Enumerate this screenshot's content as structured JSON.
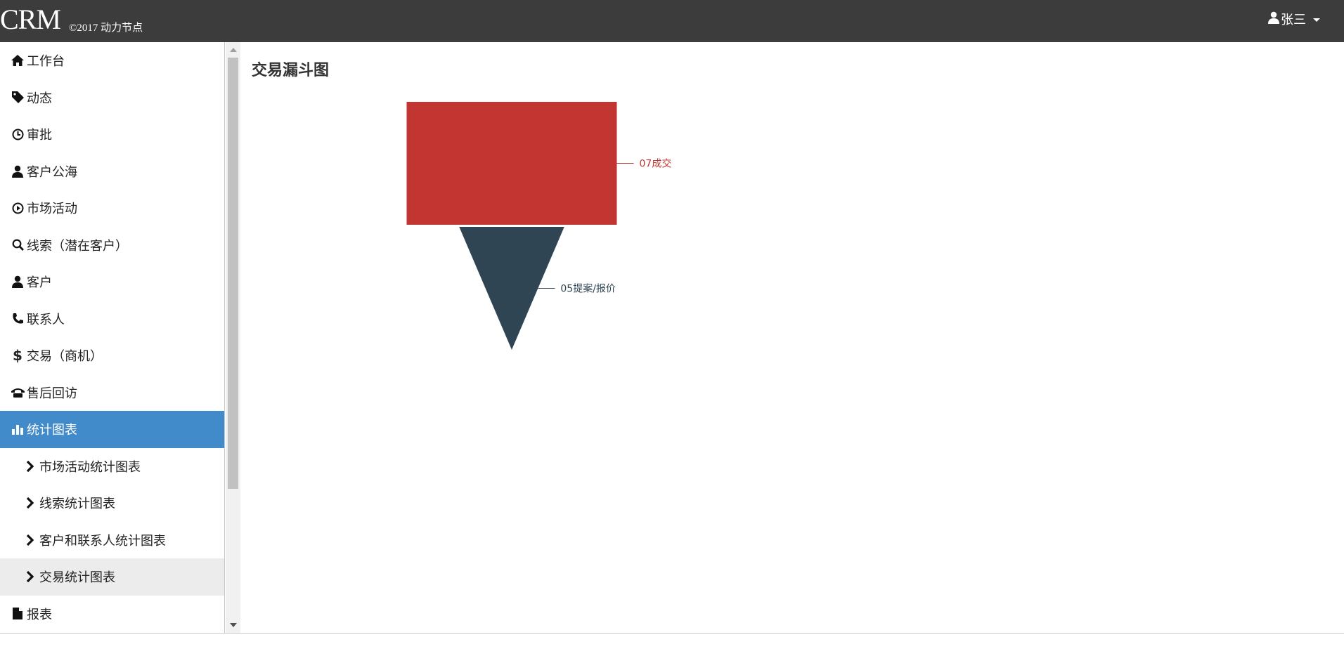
{
  "header": {
    "brand": "CRM",
    "copyright": "©2017 动力节点",
    "user_name": "张三"
  },
  "sidebar": {
    "items": [
      {
        "label": "工作台",
        "icon": "home-icon"
      },
      {
        "label": "动态",
        "icon": "tag-icon"
      },
      {
        "label": "审批",
        "icon": "clock-icon"
      },
      {
        "label": "客户公海",
        "icon": "user-icon"
      },
      {
        "label": "市场活动",
        "icon": "play-circle-icon"
      },
      {
        "label": "线索（潜在客户）",
        "icon": "search-icon"
      },
      {
        "label": "客户",
        "icon": "user-icon"
      },
      {
        "label": "联系人",
        "icon": "phone-icon"
      },
      {
        "label": "交易（商机）",
        "icon": "dollar-icon"
      },
      {
        "label": "售后回访",
        "icon": "phone-alt-icon"
      },
      {
        "label": "统计图表",
        "icon": "stats-icon",
        "active": true
      }
    ],
    "subitems": [
      {
        "label": "市场活动统计图表"
      },
      {
        "label": "线索统计图表"
      },
      {
        "label": "客户和联系人统计图表"
      },
      {
        "label": "交易统计图表",
        "active": true
      }
    ],
    "last_item": {
      "label": "报表",
      "icon": "file-icon"
    }
  },
  "main": {
    "title": "交易漏斗图"
  },
  "chart_data": {
    "type": "funnel",
    "title": "交易漏斗图",
    "sort": "ascending",
    "series": [
      {
        "name": "07成交",
        "value": 2,
        "color": "#c23531"
      },
      {
        "name": "05提案/报价",
        "value": 1,
        "color": "#2f4554"
      }
    ]
  }
}
